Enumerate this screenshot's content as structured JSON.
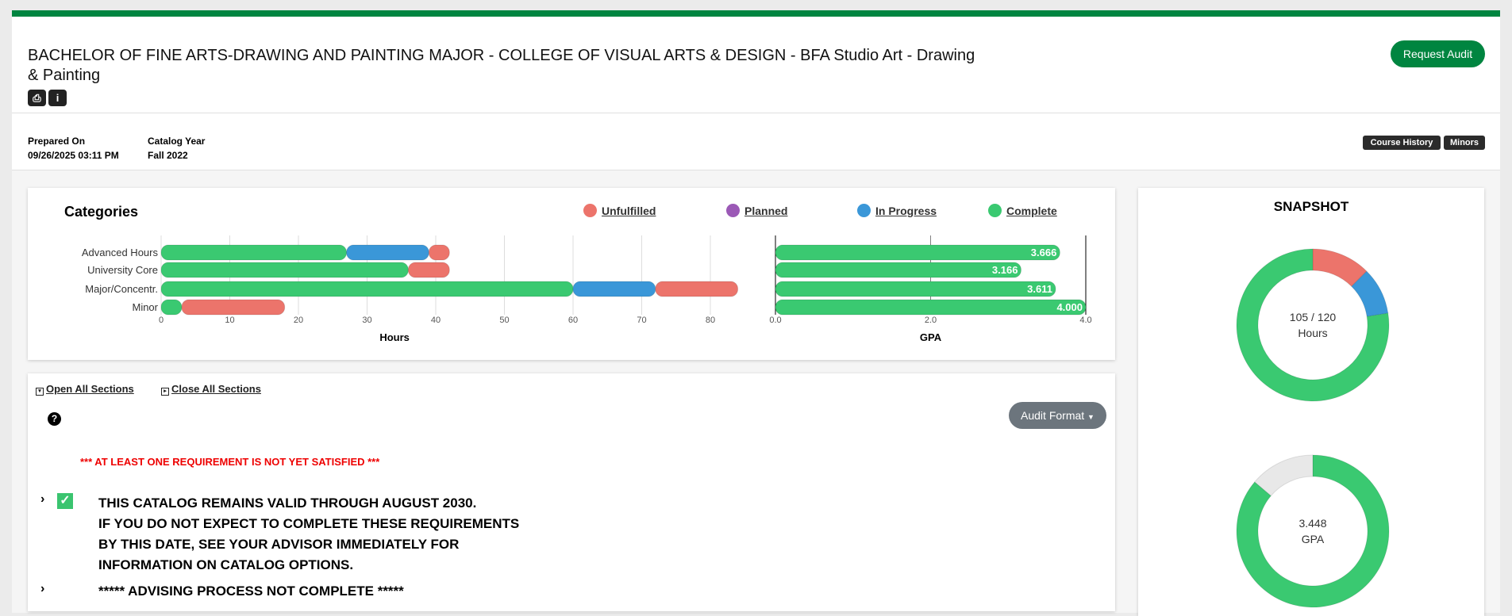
{
  "header": {
    "title": "BACHELOR OF FINE ARTS-DRAWING AND PAINTING MAJOR - COLLEGE OF VISUAL ARTS & DESIGN - BFA Studio Art - Drawing & Painting",
    "prepared_on_label": "Prepared On",
    "prepared_on": "09/26/2025 03:11 PM",
    "catalog_year_label": "Catalog Year",
    "catalog_year": "Fall 2022",
    "request_audit": "Request Audit",
    "course_history": "Course History",
    "minors": "Minors",
    "icons": [
      "print-icon",
      "info-icon"
    ]
  },
  "colors": {
    "brand": "#008540",
    "unfulfilled": "#ec746b",
    "planned": "#9b59b6",
    "in_progress": "#3a97d8",
    "complete": "#3ac971"
  },
  "chart_data": [
    {
      "type": "bar",
      "title": "Categories",
      "orientation": "horizontal",
      "stacked": true,
      "xlabel": "Hours",
      "xlim": [
        0,
        87
      ],
      "ticks": [
        0,
        10,
        20,
        30,
        40,
        50,
        60,
        70,
        80
      ],
      "categories": [
        "Advanced Hours",
        "University Core",
        "Major/Concentr.",
        "Minor"
      ],
      "series": [
        {
          "name": "Complete",
          "values": [
            27,
            36,
            60,
            3
          ]
        },
        {
          "name": "In Progress",
          "values": [
            12,
            0,
            12,
            0
          ]
        },
        {
          "name": "Planned",
          "values": [
            0,
            0,
            0,
            0
          ]
        },
        {
          "name": "Unfulfilled",
          "values": [
            3,
            6,
            12,
            15
          ]
        }
      ],
      "legend": [
        "Unfulfilled",
        "Planned",
        "In Progress",
        "Complete"
      ]
    },
    {
      "type": "bar",
      "orientation": "horizontal",
      "xlabel": "GPA",
      "xlim": [
        0,
        4
      ],
      "ticks": [
        "0.0",
        "2.0",
        "4.0"
      ],
      "categories": [
        "Advanced Hours",
        "University Core",
        "Major/Concentr.",
        "Minor"
      ],
      "values": [
        3.666,
        3.166,
        3.611,
        4.0
      ],
      "labels": [
        "3.666",
        "3.166",
        "3.611",
        "4.000"
      ]
    },
    {
      "type": "pie",
      "title": "SNAPSHOT",
      "center_text": [
        "105 / 120",
        "Hours"
      ],
      "slices": [
        {
          "name": "Unfulfilled",
          "value": 15
        },
        {
          "name": "In Progress",
          "value": 12
        },
        {
          "name": "Complete",
          "value": 93
        }
      ]
    },
    {
      "type": "pie",
      "center_text": [
        "3.448",
        "GPA"
      ],
      "slices": [
        {
          "name": "GPA",
          "value": 3.448
        },
        {
          "name": "Remaining",
          "value": 0.552
        }
      ]
    }
  ],
  "sections": {
    "open_all": "Open All Sections",
    "close_all": "Close All Sections",
    "audit_format": "Audit Format",
    "warning": "*** AT LEAST ONE REQUIREMENT IS NOT YET SATISFIED ***",
    "req1": [
      "THIS CATALOG REMAINS VALID THROUGH AUGUST 2030.",
      "IF YOU DO NOT EXPECT TO COMPLETE THESE REQUIREMENTS",
      "BY THIS DATE, SEE YOUR ADVISOR IMMEDIATELY FOR",
      "INFORMATION ON CATALOG OPTIONS."
    ],
    "req2": "***** ADVISING PROCESS NOT COMPLETE *****"
  }
}
